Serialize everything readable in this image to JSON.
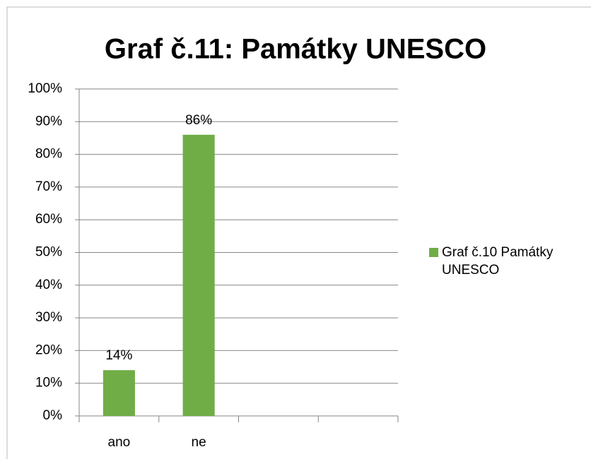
{
  "chart_data": {
    "type": "bar",
    "title": "Graf č.11: Památky UNESCO",
    "categories": [
      "ano",
      "ne",
      null,
      null
    ],
    "series": [
      {
        "name": "Graf č.10 Památky UNESCO",
        "color": "#70ad47",
        "values": [
          14,
          86,
          null,
          null
        ],
        "value_labels": [
          "14%",
          "86%",
          null,
          null
        ]
      }
    ],
    "ylim": [
      0,
      100
    ],
    "yticks": [
      {
        "value": 0,
        "label": "0%"
      },
      {
        "value": 10,
        "label": "10%"
      },
      {
        "value": 20,
        "label": "20%"
      },
      {
        "value": 30,
        "label": "30%"
      },
      {
        "value": 40,
        "label": "40%"
      },
      {
        "value": 50,
        "label": "50%"
      },
      {
        "value": 60,
        "label": "60%"
      },
      {
        "value": 70,
        "label": "70%"
      },
      {
        "value": 80,
        "label": "80%"
      },
      {
        "value": 90,
        "label": "90%"
      },
      {
        "value": 100,
        "label": "100%"
      }
    ],
    "grid": true,
    "legend": "right"
  }
}
